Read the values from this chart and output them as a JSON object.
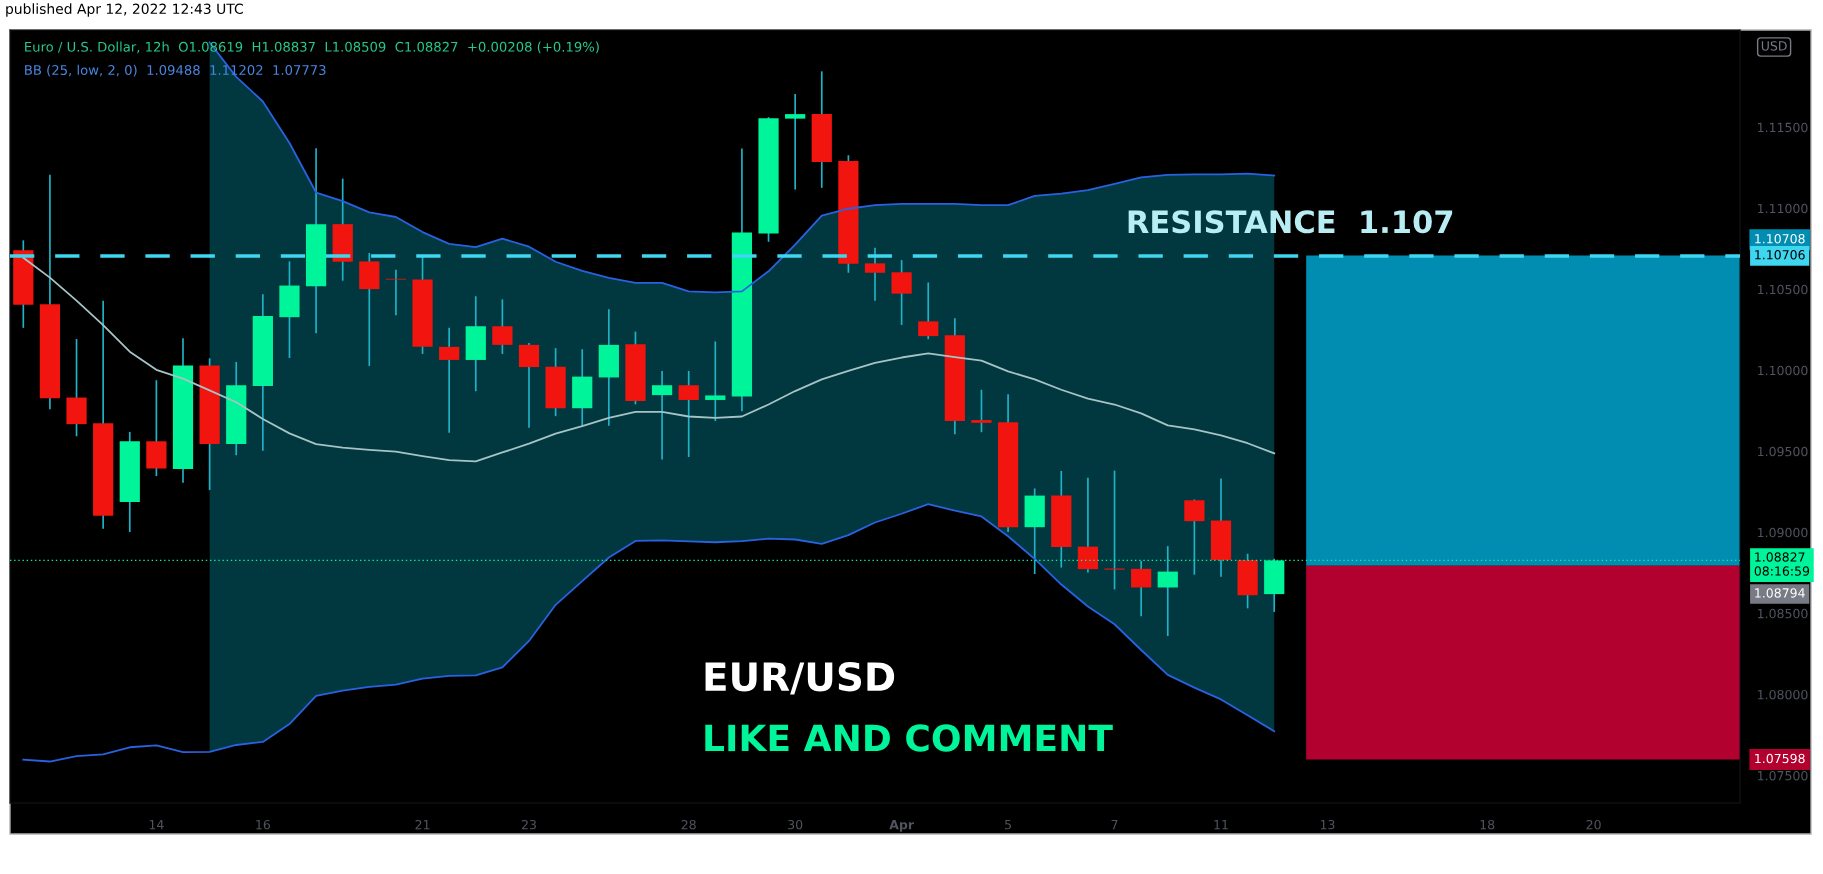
{
  "chart_data": {
    "type": "candlestick",
    "title": "Euro / U.S. Dollar, 12h  O1.08619  H1.08837  L1.08509  C1.08827  +0.00208 (+0.19%)",
    "subtitle": "BB (25, low, 2, 0)  1.09488  1.11202  1.07773",
    "annotations": [
      "published Apr 12, 2022 12:43 UTC",
      "EUR/USD",
      "LIKE AND COMMENT",
      "USD",
      "1.08794",
      {
        "text": "RESISTANCE  1.107",
        "y": 1.10706
      }
    ],
    "categories": [
      null,
      null,
      null,
      null,
      null,
      "14",
      null,
      null,
      null,
      "16",
      null,
      null,
      null,
      null,
      null,
      "21",
      null,
      null,
      null,
      "23",
      null,
      null,
      null,
      null,
      null,
      "28",
      null,
      null,
      null,
      "30",
      null,
      null,
      null,
      "Apr",
      null,
      null,
      null,
      "5",
      null,
      null,
      null,
      "7",
      null,
      null,
      null,
      "11",
      null,
      null,
      null,
      "13",
      null,
      null,
      null,
      null,
      null,
      "18",
      null,
      null,
      null,
      "20",
      null,
      null,
      null,
      null,
      null
    ],
    "ohlc": [
      [
        1.10741,
        1.10802,
        1.10262,
        1.10404
      ],
      [
        1.10408,
        1.11207,
        1.09759,
        1.09827
      ],
      [
        1.09832,
        1.10193,
        1.09593,
        1.09668
      ],
      [
        1.09673,
        1.1043,
        1.09022,
        1.09102
      ],
      [
        1.09187,
        1.0962,
        1.09002,
        1.09562
      ],
      [
        1.09562,
        1.09939,
        1.09347,
        1.09394
      ],
      [
        1.09391,
        1.10198,
        1.09306,
        1.1003
      ],
      [
        1.1003,
        1.10074,
        1.09261,
        1.09545
      ],
      [
        1.09545,
        1.10052,
        1.09476,
        1.09908
      ],
      [
        1.09903,
        1.10469,
        1.09504,
        1.10335
      ],
      [
        1.10328,
        1.10672,
        1.10076,
        1.10523
      ],
      [
        1.10518,
        1.11371,
        1.10228,
        1.10902
      ],
      [
        1.10902,
        1.11183,
        1.10553,
        1.1067
      ],
      [
        1.10672,
        1.10724,
        1.10027,
        1.10501
      ],
      [
        1.10565,
        1.10621,
        1.1034,
        1.1056
      ],
      [
        1.1056,
        1.10706,
        1.10101,
        1.10145
      ],
      [
        1.10145,
        1.10262,
        1.09614,
        1.10064
      ],
      [
        1.10064,
        1.10457,
        1.09871,
        1.10272
      ],
      [
        1.10272,
        1.10438,
        1.10101,
        1.10157
      ],
      [
        1.10157,
        1.10169,
        1.09645,
        1.1002
      ],
      [
        1.10022,
        1.10137,
        1.09717,
        1.09766
      ],
      [
        1.09766,
        1.1013,
        1.09656,
        1.09961
      ],
      [
        1.09956,
        1.10377,
        1.09658,
        1.10157
      ],
      [
        1.10161,
        1.10239,
        1.0979,
        1.09811
      ],
      [
        1.09847,
        1.09996,
        1.09449,
        1.09908
      ],
      [
        1.09908,
        1.09996,
        1.09465,
        1.09817
      ],
      [
        1.09817,
        1.10178,
        1.09687,
        1.09845
      ],
      [
        1.09839,
        1.11369,
        1.09748,
        1.10851
      ],
      [
        1.10845,
        1.11562,
        1.10793,
        1.11556
      ],
      [
        1.11553,
        1.11705,
        1.11115,
        1.11581
      ],
      [
        1.11581,
        1.11845,
        1.11126,
        1.11286
      ],
      [
        1.11291,
        1.11327,
        1.10602,
        1.10658
      ],
      [
        1.1066,
        1.10757,
        1.10429,
        1.10602
      ],
      [
        1.10605,
        1.1068,
        1.1028,
        1.10473
      ],
      [
        1.10302,
        1.10542,
        1.10192,
        1.10211
      ],
      [
        1.10217,
        1.10321,
        1.09606,
        1.09687
      ],
      [
        1.09693,
        1.0988,
        1.09618,
        1.09676
      ],
      [
        1.09679,
        1.09853,
        1.09002,
        1.09032
      ],
      [
        1.09032,
        1.09271,
        1.08743,
        1.09227
      ],
      [
        1.09227,
        1.09379,
        1.08783,
        1.0891
      ],
      [
        1.08912,
        1.09337,
        1.08753,
        1.08773
      ],
      [
        1.08777,
        1.09381,
        1.08648,
        1.0877
      ],
      [
        1.08775,
        1.08824,
        1.08482,
        1.0866
      ],
      [
        1.0866,
        1.08915,
        1.0836,
        1.08758
      ],
      [
        1.09198,
        1.09203,
        1.08739,
        1.09069
      ],
      [
        1.09073,
        1.09332,
        1.08726,
        1.08829
      ],
      [
        1.08829,
        1.08868,
        1.08531,
        1.08612
      ],
      [
        1.08619,
        1.08837,
        1.08509,
        1.08827
      ],
      null,
      null,
      null,
      null,
      null,
      null,
      null,
      null,
      null,
      null,
      null,
      null,
      null,
      null,
      null,
      null,
      null
    ],
    "colors": [
      "#f2140f",
      "#f2140f",
      "#f2140f",
      "#f2140f",
      "#00f59b",
      "#f2140f",
      "#00f59b",
      "#f2140f",
      "#00f59b",
      "#00f59b",
      "#00f59b",
      "#00f59b",
      "#f2140f",
      "#f2140f",
      "#f2140f",
      "#f2140f",
      "#f2140f",
      "#00f59b",
      "#f2140f",
      "#f2140f",
      "#f2140f",
      "#00f59b",
      "#00f59b",
      "#f2140f",
      "#00f59b",
      "#f2140f",
      "#00f59b",
      "#00f59b",
      "#00f59b",
      "#00f59b",
      "#f2140f",
      "#f2140f",
      "#f2140f",
      "#f2140f",
      "#f2140f",
      "#f2140f",
      "#f2140f",
      "#f2140f",
      "#00f59b",
      "#f2140f",
      "#f2140f",
      "#f2140f",
      "#f2140f",
      "#00f59b",
      "#f2140f",
      "#f2140f",
      "#f2140f",
      "#00f59b",
      null,
      null,
      null,
      null,
      null,
      null,
      null,
      null,
      null,
      null,
      null,
      null,
      null,
      null,
      null,
      null,
      null
    ],
    "color": "#1fb3c8",
    "series": [
      {
        "type": "line",
        "color": "#2962e0",
        "values": [
          null,
          null,
          null,
          null,
          null,
          null,
          null,
          1.12023,
          1.11811,
          1.11659,
          1.11403,
          1.11097,
          1.11044,
          1.10975,
          1.10946,
          1.10853,
          1.1078,
          1.1076,
          1.10812,
          1.10763,
          1.1067,
          1.10614,
          1.1057,
          1.10539,
          1.10539,
          1.10487,
          1.10481,
          1.10487,
          1.10611,
          1.10776,
          1.10955,
          1.10997,
          1.11019,
          1.11027,
          1.11027,
          1.11027,
          1.11019,
          1.11019,
          1.11077,
          1.1109,
          1.11112,
          1.11151,
          1.1119,
          1.11206,
          1.11209,
          1.11209,
          1.11214,
          1.11202,
          null,
          null,
          null,
          null,
          null,
          null,
          null,
          null,
          null,
          null,
          null,
          null,
          null,
          null,
          null,
          null,
          null
        ]
      },
      {
        "type": "line",
        "color": "#a6c3c5",
        "lower": [
          null,
          null,
          null,
          null,
          null,
          null,
          null,
          1.07646,
          1.07688,
          1.07707,
          1.07817,
          1.07991,
          1.08024,
          1.08046,
          1.0806,
          1.08098,
          1.08115,
          1.08118,
          1.08167,
          1.0833,
          1.08553,
          1.08699,
          1.08845,
          1.08947,
          1.0895,
          1.08945,
          1.08939,
          1.08946,
          1.08961,
          1.08956,
          1.08929,
          1.08983,
          1.09061,
          1.09115,
          1.09174,
          1.09134,
          1.09098,
          1.08976,
          1.08836,
          1.08678,
          1.08543,
          1.08433,
          1.08274,
          1.08121,
          1.08042,
          1.07969,
          1.07871,
          1.07773,
          null,
          null,
          null,
          null,
          null,
          null,
          null,
          null,
          null,
          null,
          null,
          null,
          null,
          null,
          null,
          null,
          null
        ],
        "upper": [
          null,
          null,
          null,
          null,
          null,
          null,
          null,
          1.12023,
          1.11811,
          1.11659,
          1.11403,
          1.11097,
          1.11044,
          1.10975,
          1.10946,
          1.10853,
          1.1078,
          1.1076,
          1.10812,
          1.10763,
          1.1067,
          1.10614,
          1.1057,
          1.10539,
          1.10539,
          1.10487,
          1.10481,
          1.10487,
          1.10611,
          1.10776,
          1.10955,
          1.10997,
          1.11019,
          1.11027,
          1.11027,
          1.11027,
          1.11019,
          1.11019,
          1.11077,
          1.1109,
          1.11112,
          1.11151,
          1.1119,
          1.11206,
          1.11209,
          1.11209,
          1.11214,
          1.11202,
          null,
          null,
          null,
          null,
          null,
          null,
          null,
          null,
          null,
          null,
          null,
          null,
          null,
          null,
          null,
          null,
          null
        ],
        "values": [
          1.10694,
          1.10572,
          1.1043,
          1.10279,
          1.10115,
          1.10003,
          1.09949,
          1.09876,
          1.09803,
          1.097,
          1.09611,
          1.09545,
          1.09523,
          1.09509,
          1.09498,
          1.09471,
          1.09446,
          1.09438,
          1.09493,
          1.09548,
          1.09609,
          1.09656,
          1.09707,
          1.09743,
          1.09743,
          1.09715,
          1.09707,
          1.09715,
          1.09789,
          1.09872,
          1.09944,
          1.09996,
          1.10046,
          1.10079,
          1.10104,
          1.10082,
          1.1006,
          1.09993,
          1.09944,
          1.0988,
          1.09825,
          1.09789,
          1.09734,
          1.0966,
          1.09635,
          1.09599,
          1.0955,
          1.09488,
          null,
          null,
          null,
          null,
          null,
          null,
          null,
          null,
          null,
          null,
          null,
          null,
          null,
          null,
          null,
          null,
          null
        ]
      },
      {
        "type": "line",
        "color": "#2962e0",
        "values": [
          1.07597,
          1.07586,
          1.07619,
          1.0763,
          1.07674,
          1.07685,
          1.07644,
          1.07646,
          1.07688,
          1.07707,
          1.07817,
          1.07991,
          1.08024,
          1.08046,
          1.0806,
          1.08098,
          1.08115,
          1.08118,
          1.08167,
          1.0833,
          1.08553,
          1.08699,
          1.08845,
          1.08947,
          1.0895,
          1.08945,
          1.08939,
          1.08946,
          1.08961,
          1.08956,
          1.08929,
          1.08983,
          1.09061,
          1.09115,
          1.09174,
          1.09134,
          1.09098,
          1.08976,
          1.08836,
          1.08678,
          1.08543,
          1.08433,
          1.08274,
          1.08121,
          1.08042,
          1.07969,
          1.07871,
          1.07773,
          null,
          null,
          null,
          null,
          null,
          null,
          null,
          null,
          null,
          null,
          null,
          null,
          null,
          null,
          null,
          null,
          null
        ]
      }
    ],
    "ref_lines": [
      {
        "axis": "y",
        "value": 1.10706,
        "label": "1.10706",
        "color": "#3fd6f0",
        "line_style": "dashed"
      },
      {
        "axis": "y",
        "value": 1.08827,
        "label": "1.08827\n08:16:59",
        "color": "#00f59b",
        "line_style": "dotted"
      }
    ],
    "bands": [
      {
        "axis": "y",
        "from": 1.08794,
        "to": 1.10708,
        "label": "1.10708",
        "color": "#008db1"
      },
      {
        "axis": "y",
        "from": 1.08794,
        "to": 1.07598,
        "label": "1.07598",
        "color": "#b2002f"
      }
    ],
    "ylim": [
      1.0733,
      1.121
    ],
    "yticks": [
      {
        "value": 1.075,
        "label": "1.07500"
      },
      {
        "value": 1.08,
        "label": "1.08000"
      },
      {
        "value": 1.085,
        "label": "1.08500"
      },
      {
        "value": 1.09,
        "label": "1.09000"
      },
      {
        "value": 1.095,
        "label": "1.09500"
      },
      {
        "value": 1.1,
        "label": "1.10000"
      },
      {
        "value": 1.105,
        "label": "1.10500"
      },
      {
        "value": 1.11,
        "label": "1.11000"
      },
      {
        "value": 1.115,
        "label": "1.11500"
      }
    ]
  }
}
